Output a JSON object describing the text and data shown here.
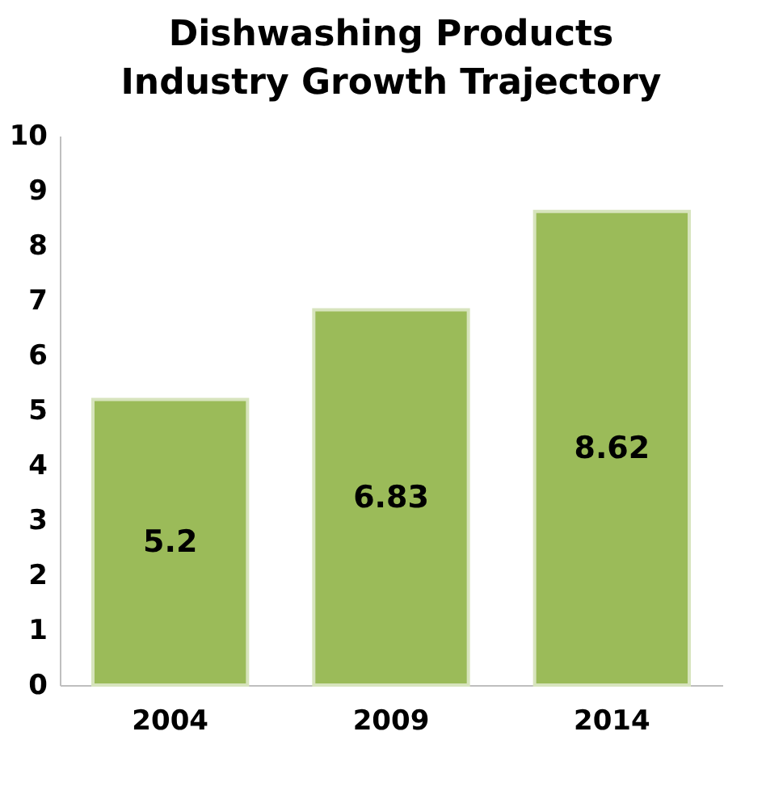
{
  "chart_data": {
    "type": "bar",
    "title": [
      "Dishwashing Products",
      "Industry Growth Trajectory"
    ],
    "categories": [
      "2004",
      "2009",
      "2014"
    ],
    "values": [
      5.2,
      6.83,
      8.62
    ],
    "color": "#9bbb59",
    "ylim": [
      0,
      10
    ],
    "yticks": [
      0,
      1,
      2,
      3,
      4,
      5,
      6,
      7,
      8,
      9,
      10
    ],
    "grid": false,
    "data_labels": true
  }
}
